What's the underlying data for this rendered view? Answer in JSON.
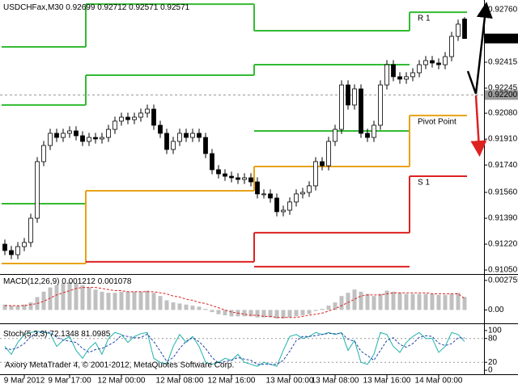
{
  "chart_data": [
    {
      "type": "candlestick",
      "title": "USDCHFax,M30",
      "categories": [
        null,
        null,
        null,
        "9 Mar 2012",
        null,
        null,
        null,
        null,
        null,
        null,
        "9 Mar 17:00",
        null,
        null,
        null,
        null,
        null,
        null,
        null,
        "12 Mar 00:00",
        null,
        null,
        null,
        null,
        null,
        null,
        null,
        null,
        "12 Mar 08:00",
        null,
        null,
        null,
        null,
        null,
        null,
        null,
        "12 Mar 16:00",
        null,
        null,
        null,
        null,
        null,
        null,
        null,
        null,
        "13 Mar 00:00",
        null,
        null,
        null,
        null,
        null,
        null,
        "13 Mar 08:00",
        null,
        null,
        null,
        null,
        null,
        null,
        null,
        "13 Mar 16:00",
        null,
        null,
        null,
        null,
        null,
        null,
        null,
        "14 Mar 00:00",
        null,
        null,
        null,
        null
      ],
      "open": [
        0.9122,
        0.91178,
        0.91151,
        0.91204,
        0.91231,
        0.9139,
        0.91762,
        0.91868,
        0.91948,
        0.91921,
        0.91948,
        0.91964,
        0.91932,
        0.91895,
        0.91921,
        0.91911,
        0.91921,
        0.91974,
        0.92028,
        0.92054,
        0.92038,
        0.92054,
        0.92081,
        0.92107,
        0.92001,
        0.91948,
        0.91842,
        0.91895,
        0.91948,
        0.91921,
        0.91948,
        0.91921,
        0.91815,
        0.91709,
        0.91682,
        0.91666,
        0.91656,
        0.91645,
        0.91656,
        0.91629,
        0.9155,
        0.9155,
        0.91523,
        0.91433,
        0.91443,
        0.91497,
        0.9155,
        0.9156,
        0.91603,
        0.91762,
        0.91735,
        0.91895,
        0.91974,
        0.92266,
        0.92134,
        0.9224,
        0.91948,
        0.91921,
        0.92001,
        0.92266,
        0.92399,
        0.9232,
        0.92304,
        0.9232,
        0.92346,
        0.92399,
        0.92426,
        0.9241,
        0.92399,
        0.92452,
        0.92585,
        0.92699
      ],
      "high": [
        0.9125,
        0.91208,
        0.91234,
        0.91261,
        0.9142,
        0.91792,
        0.91898,
        0.91978,
        0.91978,
        0.91978,
        0.91994,
        0.91994,
        0.91962,
        0.91951,
        0.91951,
        0.91951,
        0.92004,
        0.92058,
        0.92084,
        0.92084,
        0.92084,
        0.92111,
        0.92137,
        0.92137,
        0.92031,
        0.91978,
        0.91925,
        0.91978,
        0.91978,
        0.91978,
        0.91978,
        0.91951,
        0.91845,
        0.91739,
        0.91712,
        0.91696,
        0.91686,
        0.91686,
        0.91686,
        0.91659,
        0.9158,
        0.9158,
        0.91553,
        0.91473,
        0.91527,
        0.9158,
        0.9159,
        0.91633,
        0.91792,
        0.91792,
        0.91925,
        0.92004,
        0.92296,
        0.92296,
        0.9227,
        0.9227,
        0.91978,
        0.92031,
        0.92296,
        0.92429,
        0.92429,
        0.9235,
        0.9235,
        0.92376,
        0.92429,
        0.92456,
        0.92456,
        0.9244,
        0.92482,
        0.92615,
        0.92695,
        0.92712
      ],
      "low": [
        0.91148,
        0.91121,
        0.91121,
        0.91174,
        0.91201,
        0.9136,
        0.91732,
        0.91838,
        0.91891,
        0.91891,
        0.91918,
        0.91902,
        0.91865,
        0.91865,
        0.91881,
        0.91881,
        0.91891,
        0.91944,
        0.91998,
        0.92008,
        0.92008,
        0.92024,
        0.92051,
        0.91971,
        0.91918,
        0.91812,
        0.91812,
        0.91865,
        0.91891,
        0.91891,
        0.91891,
        0.91785,
        0.91679,
        0.91652,
        0.91636,
        0.91626,
        0.91615,
        0.91615,
        0.91599,
        0.9152,
        0.9152,
        0.91493,
        0.91403,
        0.91403,
        0.91413,
        0.91467,
        0.9152,
        0.9153,
        0.91573,
        0.91705,
        0.91705,
        0.91865,
        0.91944,
        0.92104,
        0.92104,
        0.91918,
        0.91891,
        0.91891,
        0.91971,
        0.92236,
        0.9229,
        0.92274,
        0.92274,
        0.9229,
        0.92316,
        0.92369,
        0.9238,
        0.92369,
        0.92369,
        0.92422,
        0.92555,
        0.92571
      ],
      "close": [
        0.91178,
        0.91151,
        0.91204,
        0.91231,
        0.9139,
        0.91762,
        0.91868,
        0.91948,
        0.91921,
        0.91948,
        0.91964,
        0.91932,
        0.91895,
        0.91921,
        0.91911,
        0.91921,
        0.91974,
        0.92028,
        0.92054,
        0.92038,
        0.92054,
        0.92081,
        0.92107,
        0.92001,
        0.91948,
        0.91842,
        0.91895,
        0.91948,
        0.91921,
        0.91948,
        0.91921,
        0.91815,
        0.91709,
        0.91682,
        0.91666,
        0.91656,
        0.91645,
        0.91656,
        0.91629,
        0.9155,
        0.9155,
        0.91523,
        0.91433,
        0.91443,
        0.91497,
        0.9155,
        0.9156,
        0.91603,
        0.91762,
        0.91735,
        0.91895,
        0.91974,
        0.92266,
        0.92134,
        0.9224,
        0.91948,
        0.91921,
        0.92001,
        0.92266,
        0.92399,
        0.9232,
        0.92304,
        0.9232,
        0.92346,
        0.92399,
        0.92426,
        0.9241,
        0.92399,
        0.92452,
        0.92585,
        0.92665,
        0.92571
      ],
      "up_color": "#ffffff",
      "down_color": "#000000",
      "wick_color": "#000000",
      "ylim": [
        0.91029,
        0.92824
      ],
      "yticks": [
        {
          "value": 0.9276,
          "label": "0.92760"
        },
        {
          "value": 0.92415,
          "label": "0.92415"
        },
        {
          "value": 0.92245,
          "label": "0.92245"
        },
        {
          "value": 0.9208,
          "label": "0.92080"
        },
        {
          "value": 0.9191,
          "label": "0.91910"
        },
        {
          "value": 0.9174,
          "label": "0.91740"
        },
        {
          "value": 0.9156,
          "label": "0.91560"
        },
        {
          "value": 0.9139,
          "label": "0.91390"
        },
        {
          "value": 0.9122,
          "label": "0.91220"
        },
        {
          "value": 0.9105,
          "label": "0.91050"
        }
      ],
      "reference_line": {
        "value": 0.922,
        "label": "0.92200"
      },
      "period_starts": [
        0,
        13,
        39,
        63
      ],
      "levels": [
        {
          "label": "R 1",
          "color": "#33bb33",
          "values": [
            0.92516,
            0.92797,
            0.92622,
            0.92744
          ]
        },
        {
          "color": "#33bb33",
          "values": [
            0.92134,
            0.9233,
            0.92399,
            null
          ]
        },
        {
          "color": "#33bb33",
          "values": [
            0.91486,
            null,
            0.91964,
            null
          ]
        },
        {
          "label": "Pivot Point",
          "color": "#e8a317",
          "values": [
            0.91093,
            0.91571,
            0.9173,
            0.92065
          ]
        },
        {
          "label": "S 1",
          "color": "#dd2222",
          "values": [
            null,
            0.91104,
            0.91295,
            0.91666
          ]
        },
        {
          "color": "#dd2222",
          "values": [
            null,
            null,
            0.91072,
            null
          ]
        }
      ]
    },
    {
      "type": "macd",
      "title": "MACD(12,26,9)",
      "series": [
        {
          "color": "#c0c0c0",
          "values": [
            0.0005,
            0.0004,
            0.0004,
            0.0005,
            0.0007,
            0.0012,
            0.0017,
            0.0021,
            0.0023,
            0.0025,
            0.0026,
            0.0025,
            0.0023,
            0.0021,
            0.0019,
            0.0017,
            0.0016,
            0.0016,
            0.0017,
            0.0017,
            0.0017,
            0.0017,
            0.0018,
            0.0016,
            0.0013,
            0.0009,
            0.0007,
            0.0006,
            0.0005,
            0.0004,
            0.0003,
            0.0001,
            -0.0002,
            -0.0004,
            -0.0005,
            -0.0006,
            -0.0006,
            -0.0006,
            -0.0006,
            -0.0007,
            -0.0007,
            -0.0007,
            -0.0008,
            -0.0008,
            -0.0007,
            -0.0006,
            -0.0005,
            -0.0004,
            -0.0001,
            0.0001,
            0.0004,
            0.0007,
            0.0013,
            0.0016,
            0.0019,
            0.0017,
            0.0015,
            0.0013,
            0.0015,
            0.0018,
            0.0017,
            0.0016,
            0.0015,
            0.0015,
            0.0015,
            0.0015,
            0.0015,
            0.0014,
            0.0014,
            0.0015,
            0.0016,
            0.001212
          ]
        },
        {
          "color": "#dd2222",
          "values": [
            0.0004,
            0.0004,
            0.0004,
            0.0004,
            0.0005,
            0.0006,
            0.0008,
            0.0011,
            0.0014,
            0.0016,
            0.0018,
            0.002,
            0.0021,
            0.0021,
            0.0021,
            0.002,
            0.0019,
            0.0018,
            0.0018,
            0.0017,
            0.0017,
            0.0017,
            0.0017,
            0.0017,
            0.0016,
            0.0015,
            0.0013,
            0.0012,
            0.001,
            0.0009,
            0.0007,
            0.0006,
            0.0004,
            0.0002,
            0,
            -0.0002,
            -0.0003,
            -0.0004,
            -0.0005,
            -0.0005,
            -0.0006,
            -0.0006,
            -0.0007,
            -0.0007,
            -0.0007,
            -0.0007,
            -0.0006,
            -0.0005,
            -0.0004,
            -0.0003,
            -0.0001,
            0.0001,
            0.0004,
            0.0007,
            0.001,
            0.0013,
            0.0014,
            0.0014,
            0.0014,
            0.0015,
            0.0016,
            0.0016,
            0.0016,
            0.0016,
            0.0016,
            0.0016,
            0.0015,
            0.0015,
            0.0015,
            0.0015,
            0.0015,
            0.001078
          ]
        }
      ],
      "ylim": [
        -0.0011,
        0.0032
      ],
      "yticks": [
        0.002755,
        {
          "value": 0,
          "label": "0.00"
        }
      ]
    },
    {
      "type": "line",
      "title": "Stoch(5,3,3)",
      "series": [
        {
          "color": "#20b2aa",
          "values": [
            60,
            40,
            70,
            90,
            95,
            98,
            96,
            92,
            60,
            75,
            85,
            50,
            30,
            55,
            70,
            40,
            80,
            95,
            90,
            70,
            85,
            92,
            95,
            30,
            20,
            15,
            60,
            90,
            70,
            85,
            60,
            20,
            15,
            20,
            30,
            25,
            40,
            20,
            15,
            10,
            20,
            15,
            10,
            50,
            85,
            90,
            80,
            85,
            95,
            90,
            95,
            90,
            95,
            50,
            75,
            20,
            15,
            40,
            95,
            90,
            60,
            45,
            70,
            85,
            95,
            80,
            80,
            45,
            60,
            95,
            90,
            72.1348
          ]
        },
        {
          "color": "#2244aa",
          "dashed": true,
          "values": [
            55,
            52,
            57,
            67,
            85,
            94,
            96,
            95,
            83,
            76,
            73,
            70,
            55,
            45,
            52,
            55,
            63,
            72,
            88,
            85,
            82,
            82,
            91,
            72,
            48,
            22,
            32,
            55,
            73,
            82,
            72,
            55,
            32,
            18,
            22,
            25,
            32,
            28,
            25,
            15,
            15,
            15,
            15,
            25,
            48,
            75,
            85,
            85,
            87,
            90,
            93,
            92,
            93,
            78,
            73,
            48,
            37,
            25,
            50,
            75,
            82,
            65,
            58,
            67,
            83,
            87,
            85,
            68,
            62,
            67,
            82,
            81.0985
          ]
        }
      ],
      "ylim": [
        -8,
        114
      ],
      "yticks": [
        0,
        20,
        80,
        100
      ],
      "levels": [
        20,
        80
      ]
    }
  ],
  "footer": "Axiory MetaTrader 4, © 2001-2012, MetaQuotes Software Corp."
}
